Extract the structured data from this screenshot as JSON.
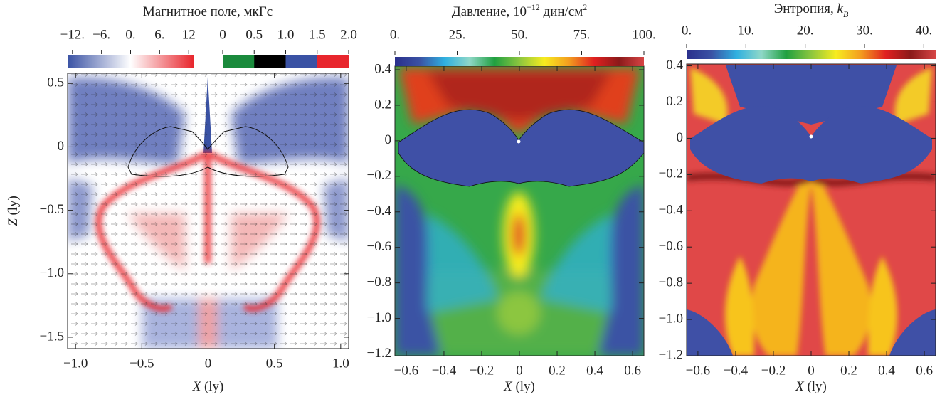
{
  "chart_data": [
    {
      "type": "field",
      "title": [
        {
          "text": "Магнитное поле, мкГс"
        }
      ],
      "colorbars": [
        {
          "lim": [
            -13,
            13
          ],
          "discrete": false,
          "colors": [
            "#3a52a4",
            "#ffffff",
            "#e8262d"
          ],
          "ticks": [
            {
              "value": -12,
              "label": "−12."
            },
            {
              "value": -6,
              "label": "−6."
            },
            {
              "value": 0,
              "label": "0."
            },
            {
              "value": 6,
              "label": "6."
            },
            12
          ]
        },
        {
          "lim": [
            0,
            2
          ],
          "discrete": true,
          "colors": [
            "#1a8a3c",
            "#000000",
            "#3a52a4",
            "#e8262d"
          ],
          "ticks": [
            0,
            0.5,
            {
              "value": 1,
              "label": "1.0"
            },
            1.5,
            {
              "value": 2,
              "label": "2.0"
            }
          ]
        }
      ],
      "xlim": [
        -1.06,
        1.06
      ],
      "ylim": [
        -1.59,
        0.58
      ],
      "xticks": [
        {
          "value": -1,
          "label": "−1.0"
        },
        {
          "value": -0.5,
          "label": "−0.5"
        },
        0,
        0.5,
        {
          "value": 1,
          "label": "1.0"
        }
      ],
      "yticks": [
        0.5,
        0,
        {
          "value": -0.5,
          "label": "−0.5"
        },
        {
          "value": -1,
          "label": "−1.0"
        },
        {
          "value": -1.5,
          "label": "−1.5"
        }
      ],
      "xlabel": [
        {
          "text": "X",
          "style": "italic"
        },
        {
          "text": " (ly)"
        }
      ],
      "ylabel": [
        {
          "text": "Z",
          "style": "italic"
        },
        {
          "text": " (ly)"
        }
      ]
    },
    {
      "type": "field",
      "title": [
        {
          "text": "Давление, 10"
        },
        {
          "text": "−12",
          "style": "sup"
        },
        {
          "text": " дин/см"
        },
        {
          "text": "2",
          "style": "sup"
        }
      ],
      "colorbars": [
        {
          "lim": [
            0,
            100
          ],
          "discrete": false,
          "colors": [
            "#2a2f8c",
            "#3a52a4",
            "#2fb0e0",
            "#8fd8c8",
            "#20a040",
            "#8cc63f",
            "#f7ec1f",
            "#f39c1f",
            "#e02020",
            "#8b1a1a",
            "#d64545"
          ],
          "ticks": [
            {
              "value": 0,
              "label": "0."
            },
            {
              "value": 25,
              "label": "25."
            },
            {
              "value": 50,
              "label": "50."
            },
            {
              "value": 75,
              "label": "75."
            },
            {
              "value": 100,
              "label": "100."
            }
          ]
        }
      ],
      "xlim": [
        -0.66,
        0.66
      ],
      "ylim": [
        -1.21,
        0.42
      ],
      "xticks": [
        {
          "value": -0.6,
          "label": "−0.6"
        },
        {
          "value": -0.4,
          "label": "−0.4"
        },
        {
          "value": -0.2,
          "label": "−0.2"
        },
        0,
        0.2,
        0.4,
        0.6
      ],
      "yticks": [
        0.4,
        0.2,
        0,
        {
          "value": -0.2,
          "label": "−0.2"
        },
        {
          "value": -0.4,
          "label": "−0.4"
        },
        {
          "value": -0.6,
          "label": "−0.6"
        },
        {
          "value": -0.8,
          "label": "−0.8"
        },
        {
          "value": -1,
          "label": "−1.0"
        },
        {
          "value": -1.2,
          "label": "−1.2"
        }
      ],
      "xlabel": [
        {
          "text": "X",
          "style": "italic"
        },
        {
          "text": " (ly)"
        }
      ]
    },
    {
      "type": "field",
      "title": [
        {
          "text": "Энтропия, "
        },
        {
          "text": "k",
          "style": "italic"
        },
        {
          "text": "B",
          "style": "sub"
        }
      ],
      "colorbars": [
        {
          "lim": [
            0,
            42
          ],
          "discrete": false,
          "colors": [
            "#2a2f8c",
            "#3a52a4",
            "#2fb0e0",
            "#8fd8c8",
            "#20a040",
            "#8cc63f",
            "#f7ec1f",
            "#f39c1f",
            "#e02020",
            "#8b1a1a",
            "#d64545"
          ],
          "ticks": [
            {
              "value": 0,
              "label": "0."
            },
            {
              "value": 10,
              "label": "10."
            },
            {
              "value": 20,
              "label": "20."
            },
            {
              "value": 30,
              "label": "30."
            },
            {
              "value": 40,
              "label": "40."
            }
          ]
        }
      ],
      "xlim": [
        -0.66,
        0.66
      ],
      "ylim": [
        -1.2,
        0.41
      ],
      "xticks": [
        {
          "value": -0.6,
          "label": "−0.6"
        },
        {
          "value": -0.4,
          "label": "−0.4"
        },
        {
          "value": -0.2,
          "label": "−0.2"
        },
        0,
        0.2,
        0.4,
        0.6
      ],
      "yticks": [
        0.4,
        0.2,
        0,
        {
          "value": -0.2,
          "label": "−0.2"
        },
        {
          "value": -0.4,
          "label": "−0.4"
        },
        {
          "value": -0.6,
          "label": "−0.6"
        },
        {
          "value": -0.8,
          "label": "−0.8"
        },
        {
          "value": -1,
          "label": "−1.0"
        },
        {
          "value": -1.2,
          "label": "−1.2"
        }
      ],
      "xlabel": [
        {
          "text": "X",
          "style": "italic"
        },
        {
          "text": " (ly)"
        }
      ]
    }
  ]
}
